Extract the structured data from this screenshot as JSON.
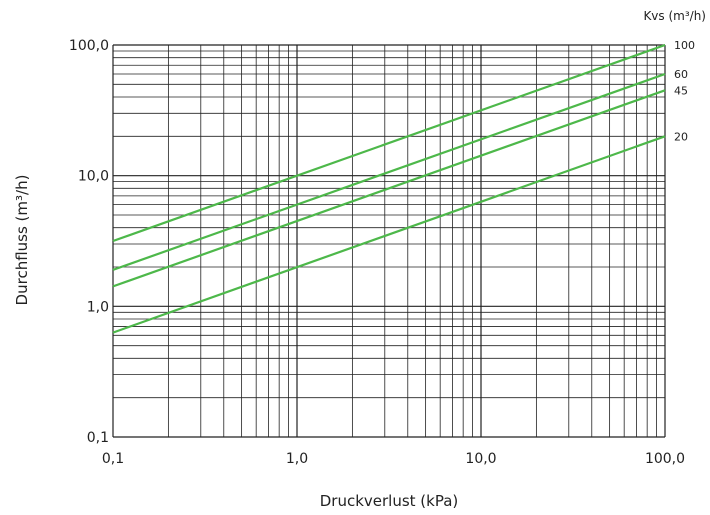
{
  "chart_data": {
    "type": "line",
    "xlabel": "Druckverlust (kPa)",
    "ylabel": "Durchfluss (m³/h)",
    "x_scale": "log",
    "y_scale": "log",
    "xlim": [
      0.1,
      100
    ],
    "ylim": [
      0.1,
      100
    ],
    "x_ticks": [
      0.1,
      1,
      10,
      100
    ],
    "x_tick_labels": [
      "0,1",
      "1,0",
      "10,0",
      "100,0"
    ],
    "y_ticks": [
      0.1,
      1,
      10,
      100
    ],
    "y_tick_labels": [
      "0,1",
      "1,0",
      "10,0",
      "100,0"
    ],
    "grid": true,
    "legend_title": "Kvs (m³/h)",
    "line_color": "#4db84a",
    "series": [
      {
        "name": "100",
        "x": [
          0.1,
          100
        ],
        "y": [
          3.16,
          100
        ]
      },
      {
        "name": "60",
        "x": [
          0.1,
          100
        ],
        "y": [
          1.9,
          60
        ]
      },
      {
        "name": "45",
        "x": [
          0.1,
          100
        ],
        "y": [
          1.42,
          45
        ]
      },
      {
        "name": "20",
        "x": [
          0.1,
          100
        ],
        "y": [
          0.63,
          20
        ]
      }
    ]
  }
}
